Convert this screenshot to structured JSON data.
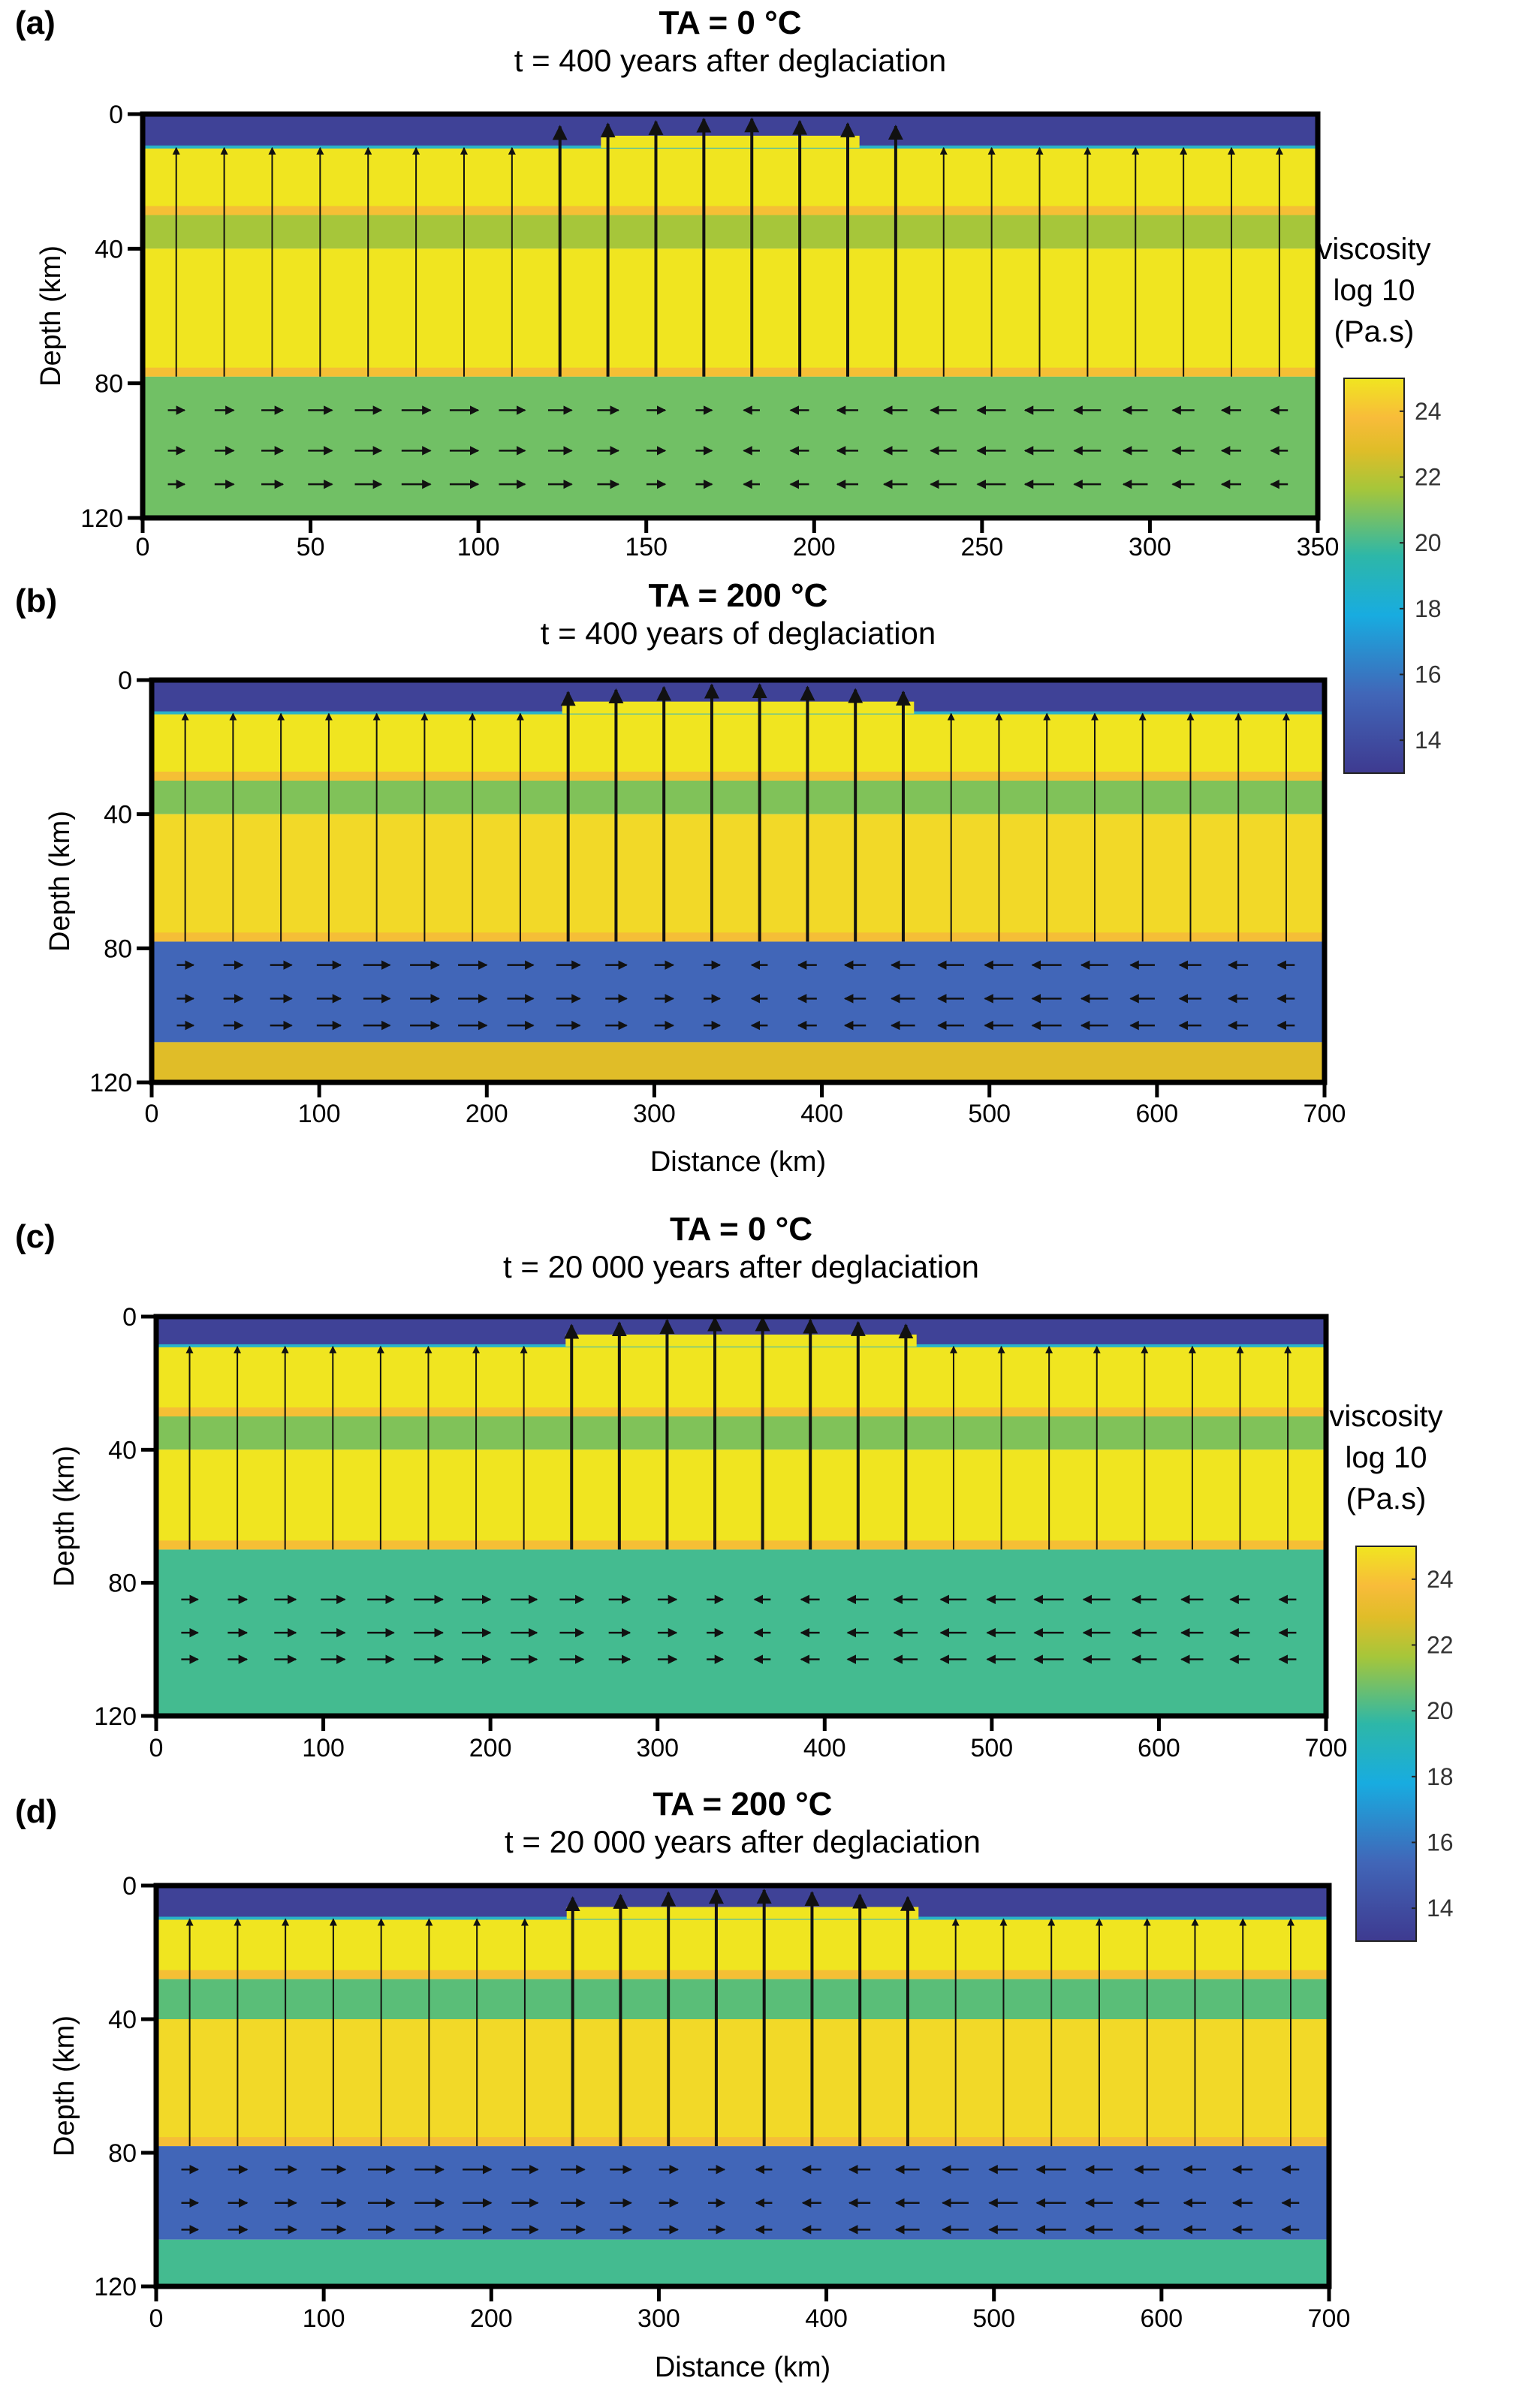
{
  "chart_data": [
    {
      "id": "a",
      "type": "heatmap",
      "panel_label": "(a)",
      "title": "TA = 0 °C",
      "subtitle": "t = 400 years after deglaciation",
      "xlabel": "",
      "ylabel": "Depth (km)",
      "xlim": [
        0,
        350
      ],
      "ylim": [
        0,
        120
      ],
      "xticks": [
        0,
        50,
        100,
        150,
        200,
        250,
        300,
        350
      ],
      "yticks": [
        0,
        40,
        80,
        120
      ],
      "layers": [
        {
          "from": 0,
          "to": 10,
          "log_viscosity": 13.5,
          "note": "ice load (center 130-205 km raised)"
        },
        {
          "from": 10,
          "to": 30,
          "log_viscosity": 24.5
        },
        {
          "from": 30,
          "to": 40,
          "log_viscosity": 21.5
        },
        {
          "from": 40,
          "to": 78,
          "log_viscosity": 24.5
        },
        {
          "from": 78,
          "to": 120,
          "log_viscosity": 20.8
        }
      ],
      "arrows_pattern": "upward near center, converging flow in lower crust, circulation cells in mantle"
    },
    {
      "id": "b",
      "type": "heatmap",
      "panel_label": "(b)",
      "title": "TA = 200 °C",
      "subtitle": "t = 400 years of deglaciation",
      "xlabel": "Distance (km)",
      "ylabel": "Depth (km)",
      "xlim": [
        0,
        700
      ],
      "ylim": [
        0,
        120
      ],
      "xticks": [
        0,
        100,
        200,
        300,
        400,
        500,
        600,
        700
      ],
      "yticks": [
        0,
        40,
        80,
        120
      ],
      "layers": [
        {
          "from": 0,
          "to": 10,
          "log_viscosity": 13.5
        },
        {
          "from": 10,
          "to": 30,
          "log_viscosity": 24.5
        },
        {
          "from": 30,
          "to": 40,
          "log_viscosity": 21.0
        },
        {
          "from": 40,
          "to": 78,
          "log_viscosity": 24.0
        },
        {
          "from": 78,
          "to": 108,
          "log_viscosity": 16.0
        },
        {
          "from": 108,
          "to": 120,
          "log_viscosity": 22.5
        }
      ],
      "arrows_pattern": "strong vertical uplift centre, horizontal inflow in low-viscosity channel"
    },
    {
      "id": "c",
      "type": "heatmap",
      "panel_label": "(c)",
      "title": "TA = 0 °C",
      "subtitle": "t = 20 000 years after deglaciation",
      "xlabel": "",
      "ylabel": "Depth (km)",
      "xlim": [
        0,
        700
      ],
      "ylim": [
        0,
        120
      ],
      "xticks": [
        0,
        100,
        200,
        300,
        400,
        500,
        600,
        700
      ],
      "yticks": [
        0,
        40,
        80,
        120
      ],
      "layers": [
        {
          "from": 0,
          "to": 9,
          "log_viscosity": 13.5
        },
        {
          "from": 9,
          "to": 30,
          "log_viscosity": 24.5
        },
        {
          "from": 30,
          "to": 40,
          "log_viscosity": 21.0
        },
        {
          "from": 40,
          "to": 70,
          "log_viscosity": 24.5
        },
        {
          "from": 70,
          "to": 120,
          "log_viscosity": 20.0
        }
      ],
      "arrows_pattern": "vertical uplift, horizontal inflow converging at center in mantle"
    },
    {
      "id": "d",
      "type": "heatmap",
      "panel_label": "(d)",
      "title": "TA = 200 °C",
      "subtitle": "t = 20 000 years after deglaciation",
      "xlabel": "Distance (km)",
      "ylabel": "Depth (km)",
      "xlim": [
        0,
        700
      ],
      "ylim": [
        0,
        120
      ],
      "xticks": [
        0,
        100,
        200,
        300,
        400,
        500,
        600,
        700
      ],
      "yticks": [
        0,
        40,
        80,
        120
      ],
      "layers": [
        {
          "from": 0,
          "to": 10,
          "log_viscosity": 13.5
        },
        {
          "from": 10,
          "to": 28,
          "log_viscosity": 24.5
        },
        {
          "from": 28,
          "to": 40,
          "log_viscosity": 20.5
        },
        {
          "from": 40,
          "to": 78,
          "log_viscosity": 24.0
        },
        {
          "from": 78,
          "to": 106,
          "log_viscosity": 16.0
        },
        {
          "from": 106,
          "to": 120,
          "log_viscosity": 20.0
        }
      ],
      "arrows_pattern": "vertical uplift center, scattered small arrows in low-viscosity channel"
    }
  ],
  "colorbars": [
    {
      "label_lines": [
        "viscosity",
        "log 10",
        "(Pa.s)"
      ],
      "ticks": [
        24,
        22,
        20,
        18,
        16,
        14
      ],
      "range": [
        13,
        25
      ]
    },
    {
      "label_lines": [
        "viscosity",
        "log 10",
        "(Pa.s)"
      ],
      "ticks": [
        24,
        22,
        20,
        18,
        16,
        14
      ],
      "range": [
        13,
        25
      ]
    }
  ]
}
